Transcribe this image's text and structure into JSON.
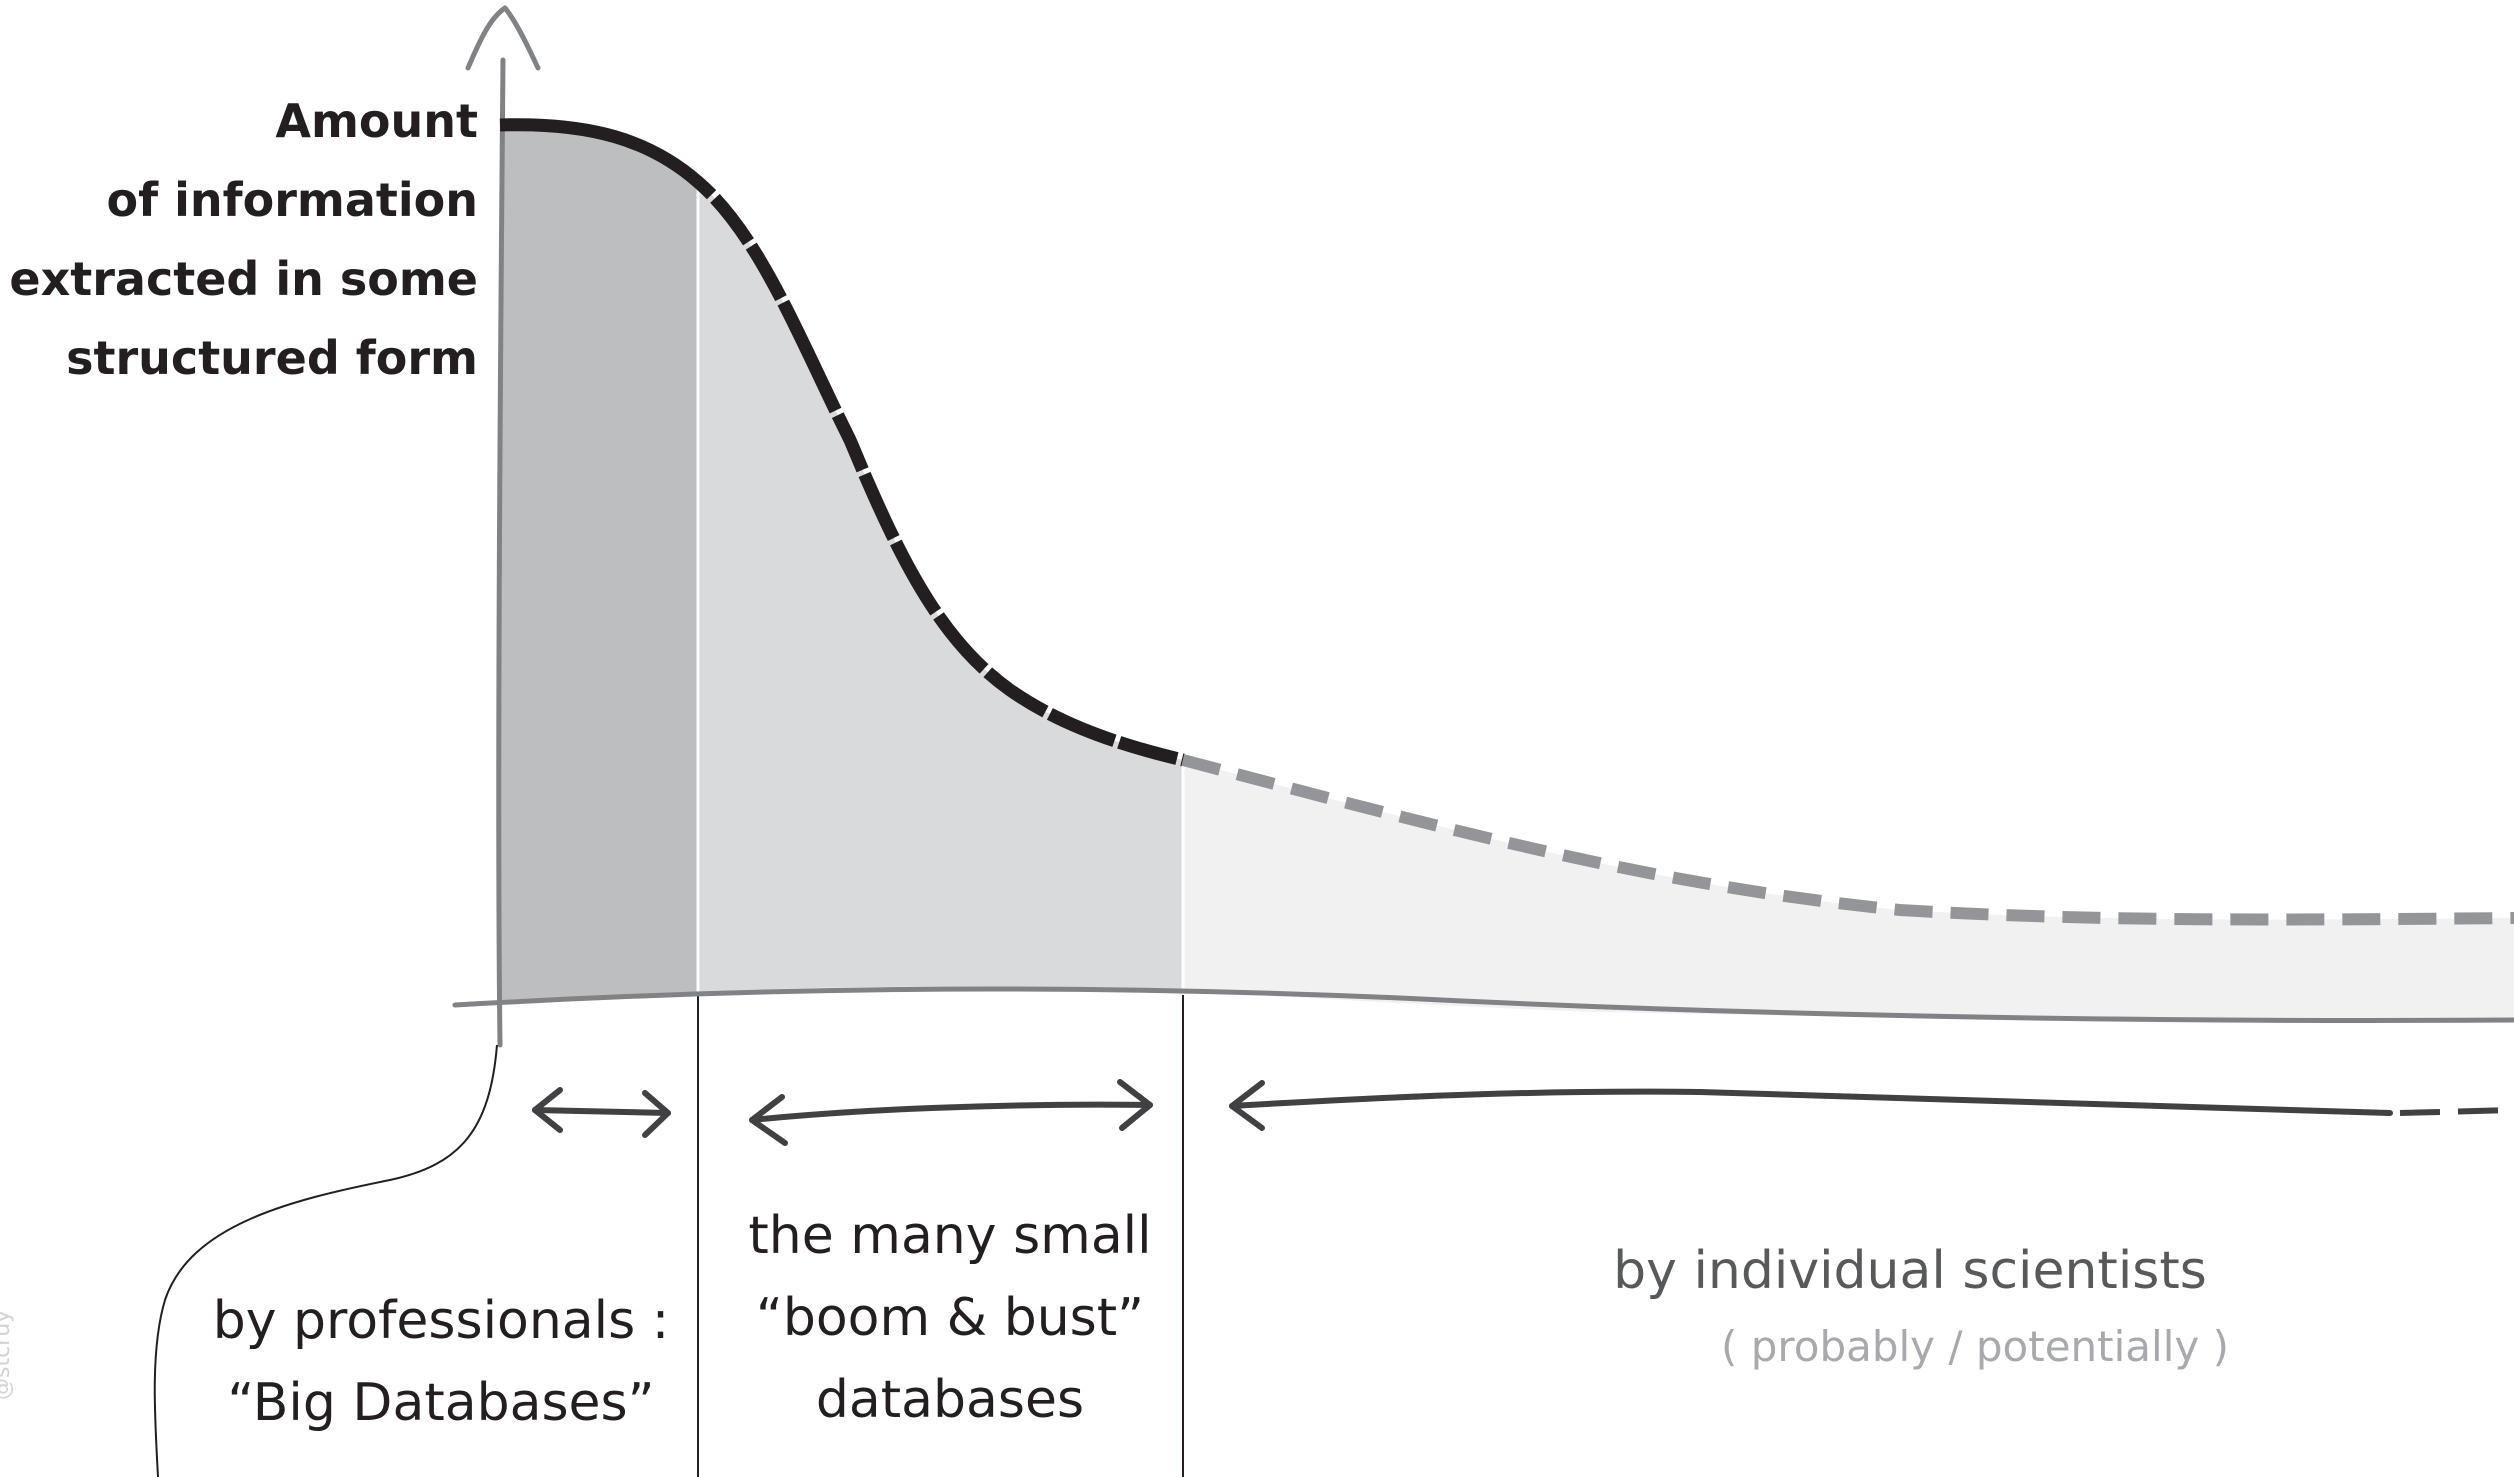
{
  "y_axis_label": [
    "Amount",
    "of information",
    "extracted in some",
    "structured form"
  ],
  "categories": {
    "professionals": [
      "by professionals :",
      "“Big Databases”"
    ],
    "boom_bust": [
      "the many small",
      "“boom & bust”",
      "databases"
    ],
    "individuals": {
      "label": "by individual scientists",
      "note": "( probably / potentially )"
    }
  },
  "watermark": "@stcruy",
  "colors": {
    "region_professionals": "#bcbec0",
    "region_boom_bust": "#d9dadb",
    "region_individuals": "#f1f1f2",
    "curve_solid": "#231f20",
    "curve_dashed": "#939598",
    "axis": "#808285",
    "ink": "#231f20",
    "individuals_text": "#58595b",
    "note_text": "#a7a9ac"
  }
}
